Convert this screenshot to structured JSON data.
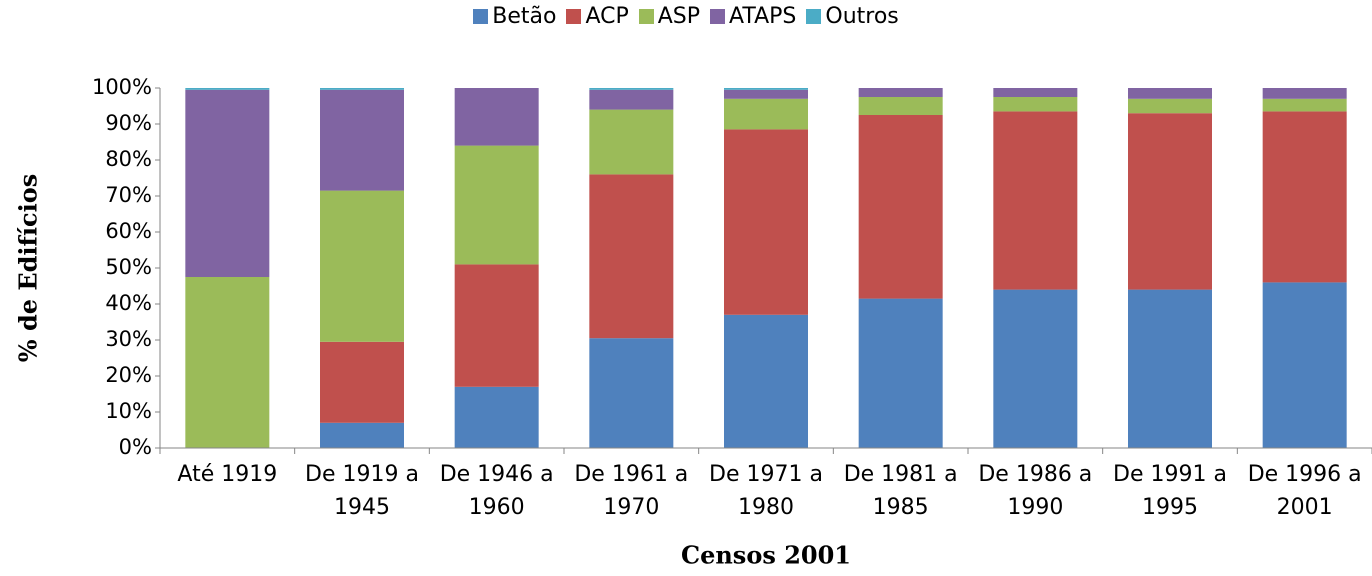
{
  "chart_data": {
    "type": "stacked_bar",
    "x_label": "Censos 2001",
    "y_label": "% de Edifícios",
    "categories": [
      "Até 1919",
      "De 1919 a 1945",
      "De 1946 a 1960",
      "De 1961 a 1970",
      "De 1971 a 1980",
      "De 1981 a 1985",
      "De 1986 a 1990",
      "De 1991 a 1995",
      "De 1996 a 2001"
    ],
    "series": [
      {
        "name": "Betão",
        "color": "#4f81bd",
        "values": [
          0,
          7,
          17,
          30.5,
          37,
          41.5,
          44,
          44,
          46
        ]
      },
      {
        "name": "ACP",
        "color": "#c0504d",
        "values": [
          0,
          22.5,
          34,
          45.5,
          51.5,
          51,
          49.5,
          49,
          47.5
        ]
      },
      {
        "name": "ASP",
        "color": "#9bbb59",
        "values": [
          47.5,
          42,
          33,
          18,
          8.5,
          5,
          4,
          4,
          3.5
        ]
      },
      {
        "name": "ATAPS",
        "color": "#8064a2",
        "values": [
          52,
          28,
          16,
          5.5,
          2.5,
          2.5,
          2.5,
          3,
          3
        ]
      },
      {
        "name": "Outros",
        "color": "#4bacc6",
        "values": [
          0.5,
          0.5,
          0,
          0.5,
          0.5,
          0,
          0,
          0,
          0
        ]
      }
    ],
    "ylim": [
      0,
      100
    ],
    "yticks": [
      {
        "value": 0,
        "label": "0%"
      },
      {
        "value": 10,
        "label": "10%"
      },
      {
        "value": 20,
        "label": "20%"
      },
      {
        "value": 30,
        "label": "30%"
      },
      {
        "value": 40,
        "label": "40%"
      },
      {
        "value": 50,
        "label": "50%"
      },
      {
        "value": 60,
        "label": "60%"
      },
      {
        "value": 70,
        "label": "70%"
      },
      {
        "value": 80,
        "label": "80%"
      },
      {
        "value": 90,
        "label": "90%"
      },
      {
        "value": 100,
        "label": "100%"
      }
    ],
    "grid": false,
    "legend": "top"
  }
}
